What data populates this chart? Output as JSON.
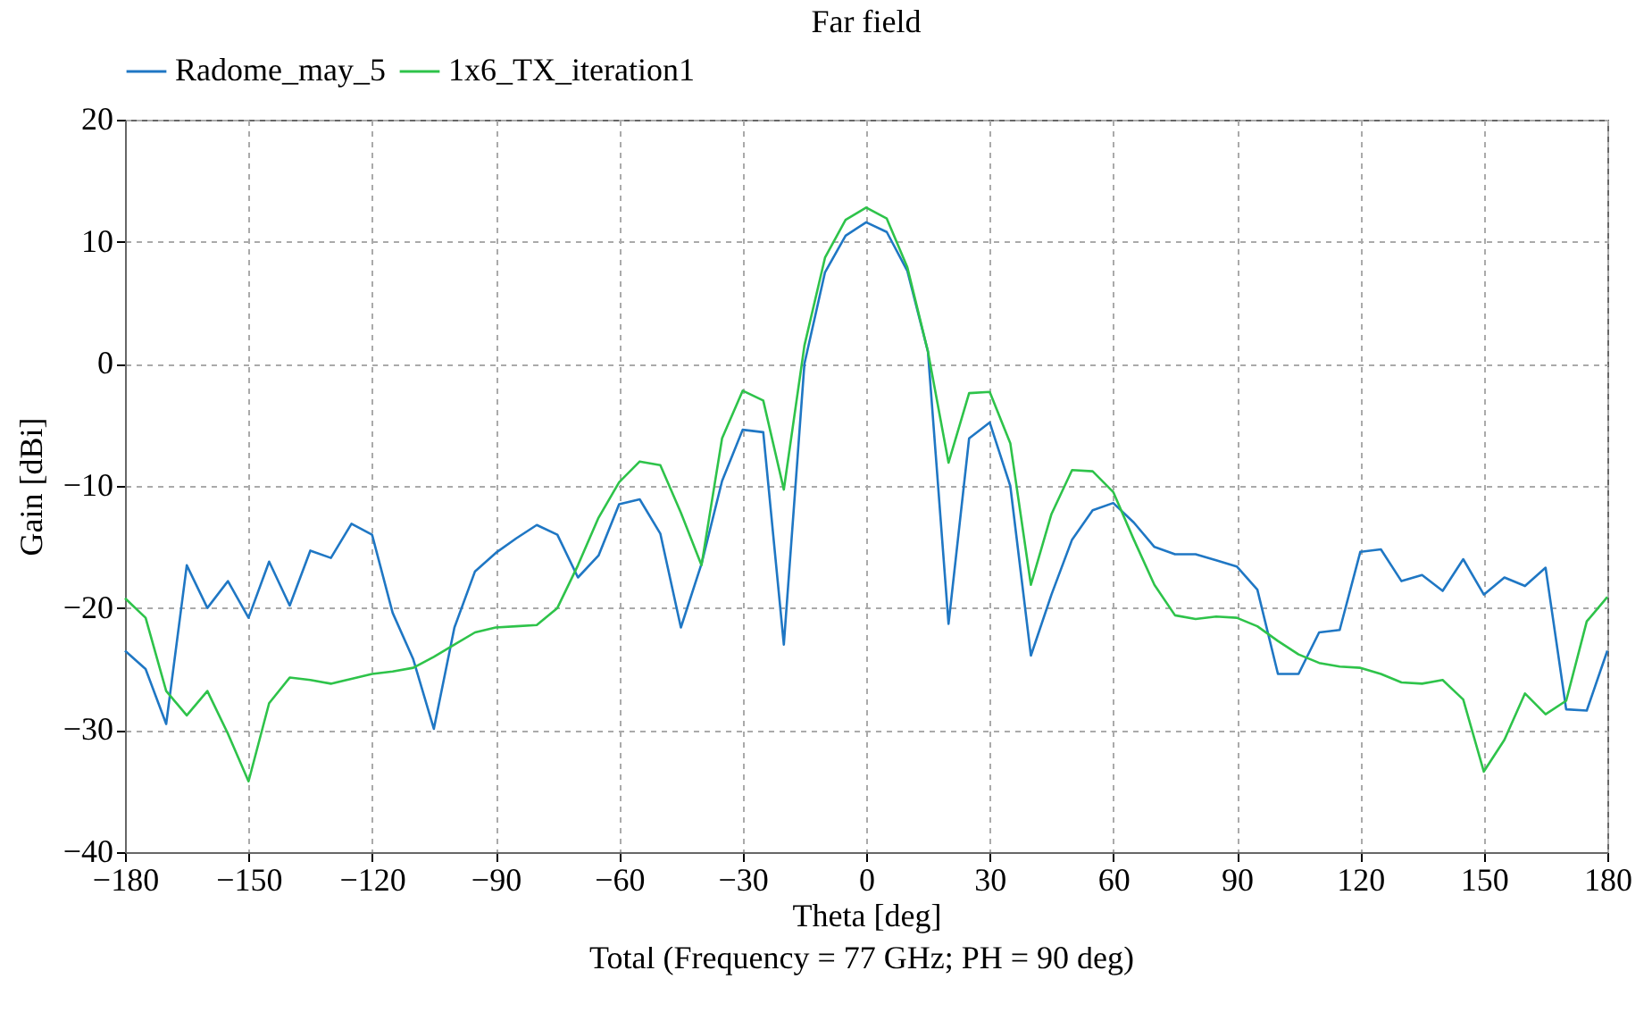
{
  "chart_data": {
    "type": "line",
    "title": "Far field",
    "xlabel": "Theta [deg]",
    "ylabel": "Gain [dBi]",
    "annotations": [
      "Total (Frequency = 77 GHz; PH = 90 deg)"
    ],
    "x": [
      -180,
      -175,
      -170,
      -165,
      -160,
      -155,
      -150,
      -145,
      -140,
      -135,
      -130,
      -125,
      -120,
      -115,
      -110,
      -105,
      -100,
      -95,
      -90,
      -85,
      -80,
      -75,
      -70,
      -65,
      -60,
      -55,
      -50,
      -45,
      -40,
      -35,
      -30,
      -25,
      -20,
      -15,
      -10,
      -5,
      0,
      5,
      10,
      15,
      20,
      25,
      30,
      35,
      40,
      45,
      50,
      55,
      60,
      65,
      70,
      75,
      80,
      85,
      90,
      95,
      100,
      105,
      110,
      115,
      120,
      125,
      130,
      135,
      140,
      145,
      150,
      155,
      160,
      165,
      170,
      175,
      180
    ],
    "series": [
      {
        "name": "Radome_may_5",
        "color": "#1f77c4",
        "values": [
          -23.5,
          -25,
          -29.5,
          -16.5,
          -20,
          -17.8,
          -20.8,
          -16.2,
          -19.8,
          -15.3,
          -15.9,
          -13.1,
          -14,
          -20.4,
          -24.2,
          -29.9,
          -21.6,
          -17,
          -15.5,
          -14.3,
          -13.2,
          -14,
          -17.5,
          -15.7,
          -11.5,
          -11.1,
          -13.9,
          -21.6,
          -16.4,
          -9.6,
          -5.4,
          -5.6,
          -23,
          0,
          7.5,
          10.5,
          11.6,
          10.8,
          7.6,
          1,
          -21.3,
          -6.1,
          -4.8,
          -10,
          -23.9,
          -18.9,
          -14.4,
          -12,
          -11.4,
          -13,
          -15,
          -15.6,
          -15.6,
          -16.1,
          -16.6,
          -18.5,
          -25.4,
          -25.4,
          -22,
          -21.8,
          -15.4,
          -15.2,
          -17.8,
          -17.3,
          -18.6,
          -16,
          -18.9,
          -17.5,
          -18.2,
          -16.7,
          -28.3,
          -28.4,
          -23.5
        ]
      },
      {
        "name": "1x6_TX_iteration1",
        "color": "#2ec34a",
        "values": [
          -19.2,
          -20.8,
          -26.8,
          -28.8,
          -26.8,
          -30.3,
          -34.2,
          -27.8,
          -25.7,
          -25.9,
          -26.2,
          -25.8,
          -25.4,
          -25.2,
          -24.9,
          -24,
          -23,
          -22,
          -21.6,
          -21.5,
          -21.4,
          -20,
          -16.5,
          -12.6,
          -9.7,
          -8,
          -8.3,
          -12.2,
          -16.5,
          -6.1,
          -2.2,
          -3,
          -10.3,
          1.5,
          8.7,
          11.8,
          12.8,
          11.9,
          7.9,
          1,
          -8.1,
          -2.4,
          -2.3,
          -6.5,
          -18.1,
          -12.3,
          -8.7,
          -8.8,
          -10.5,
          -14.4,
          -18.1,
          -20.6,
          -20.9,
          -20.7,
          -20.8,
          -21.5,
          -22.7,
          -23.8,
          -24.5,
          -24.8,
          -24.9,
          -25.4,
          -26.1,
          -26.2,
          -25.9,
          -27.5,
          -33.4,
          -30.8,
          -27,
          -28.7,
          -27.6,
          -21.1,
          -19.1
        ]
      }
    ],
    "xlim": [
      -180,
      180
    ],
    "xticks": [
      -180,
      -150,
      -120,
      -90,
      -60,
      -30,
      0,
      30,
      60,
      90,
      120,
      150,
      180
    ],
    "ylim": [
      -40,
      20
    ],
    "yticks": [
      -40,
      -30,
      -20,
      -10,
      0,
      10,
      20
    ],
    "grid": true,
    "legend": "top",
    "line_style": "solid",
    "marker": "none"
  }
}
